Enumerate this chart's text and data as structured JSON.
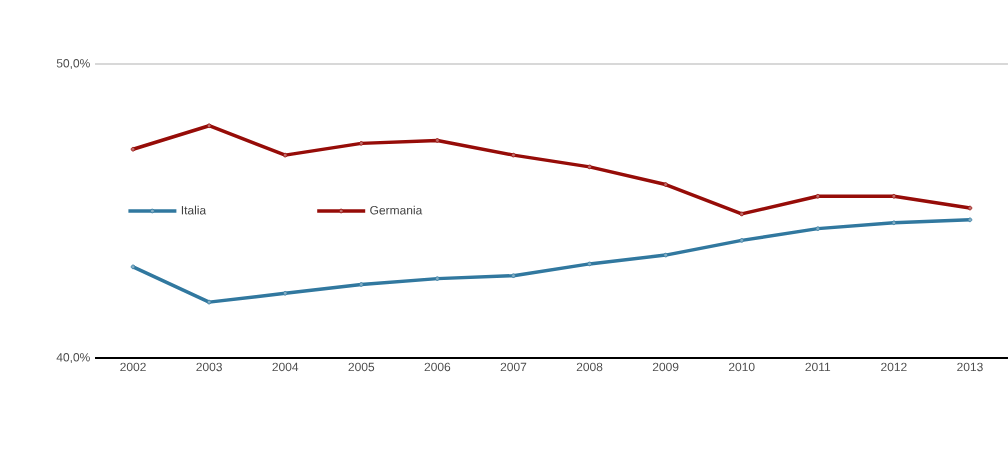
{
  "chart_data": {
    "type": "line",
    "categories": [
      "2002",
      "2003",
      "2004",
      "2005",
      "2006",
      "2007",
      "2008",
      "2009",
      "2010",
      "2011",
      "2012",
      "2013"
    ],
    "series": [
      {
        "name": "Italia",
        "color": "#31789f",
        "values": [
          43.1,
          41.9,
          42.2,
          42.5,
          42.7,
          42.8,
          43.2,
          43.5,
          44.0,
          44.4,
          44.6,
          44.7
        ]
      },
      {
        "name": "Germania",
        "color": "#960c08",
        "values": [
          47.1,
          47.9,
          46.9,
          47.3,
          47.4,
          46.9,
          46.5,
          45.9,
          44.9,
          45.5,
          45.5,
          45.1
        ]
      }
    ],
    "ylim": [
      40,
      50
    ],
    "yticks": [
      {
        "value": 40,
        "label": "40,0%"
      },
      {
        "value": 50,
        "label": "50,0%"
      }
    ],
    "grid": "y",
    "legend": "left",
    "marker": "circle",
    "line_style": "solid"
  }
}
